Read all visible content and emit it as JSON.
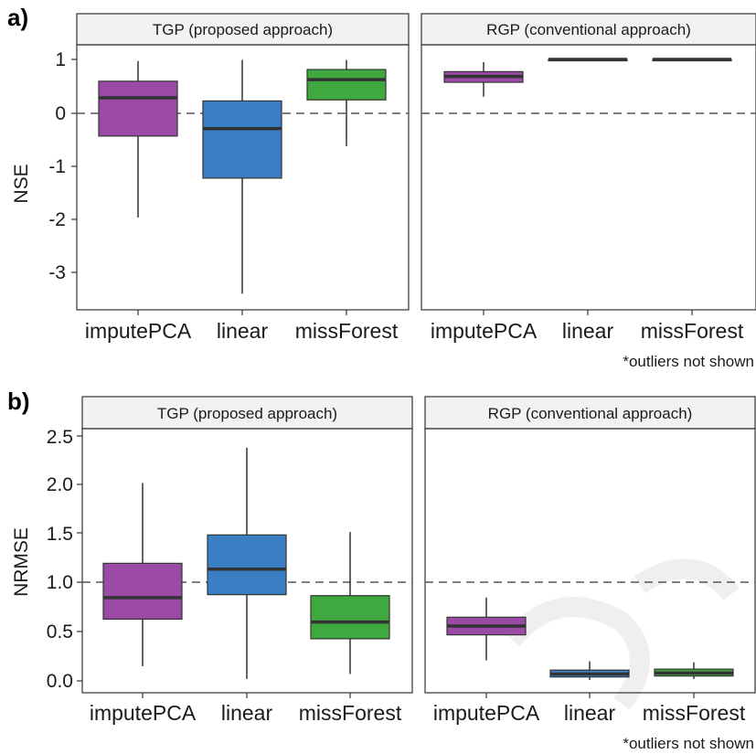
{
  "colors": {
    "imputePCA": "#9b4aa6",
    "linear": "#3a7fc4",
    "missForest": "#3fa83f",
    "strip_bg": "#f2f2f2",
    "median": "#333333",
    "ref_line": "#555555",
    "watermark": "#eeeeee"
  },
  "chart_data": [
    {
      "type": "box",
      "panel_label": "a)",
      "ylabel": "NSE",
      "yticks": [
        "1",
        "0",
        "-1",
        "-2",
        "-3"
      ],
      "ylim": [
        -3.75,
        1.2
      ],
      "reference_line": 0,
      "categories": [
        "imputePCA",
        "linear",
        "missForest"
      ],
      "note": "*outliers not shown",
      "facets": [
        {
          "title": "TGP (proposed approach)",
          "boxes": [
            {
              "category": "imputePCA",
              "whisker_low": -1.97,
              "q1": -0.44,
              "median": 0.28,
              "q3": 0.59,
              "whisker_high": 0.97
            },
            {
              "category": "linear",
              "whisker_low": -3.4,
              "q1": -1.23,
              "median": -0.3,
              "q3": 0.22,
              "whisker_high": 0.99
            },
            {
              "category": "missForest",
              "whisker_low": -0.63,
              "q1": 0.24,
              "median": 0.62,
              "q3": 0.81,
              "whisker_high": 0.99
            }
          ]
        },
        {
          "title": "RGP (conventional approach)",
          "boxes": [
            {
              "category": "imputePCA",
              "whisker_low": 0.3,
              "q1": 0.57,
              "median": 0.68,
              "q3": 0.77,
              "whisker_high": 0.95
            },
            {
              "category": "linear",
              "whisker_low": 0.99,
              "q1": 0.99,
              "median": 1.0,
              "q3": 1.0,
              "whisker_high": 1.0
            },
            {
              "category": "missForest",
              "whisker_low": 0.99,
              "q1": 0.99,
              "median": 1.0,
              "q3": 1.0,
              "whisker_high": 1.0
            }
          ]
        }
      ]
    },
    {
      "type": "box",
      "panel_label": "b)",
      "ylabel": "NRMSE",
      "yticks": [
        "2.5",
        "2.0",
        "1.5",
        "1.0",
        "0.5",
        "0.0"
      ],
      "ylim": [
        -0.06,
        2.45
      ],
      "reference_line": 1.0,
      "categories": [
        "imputePCA",
        "linear",
        "missForest"
      ],
      "note": "*outliers not shown",
      "facets": [
        {
          "title": "TGP (proposed approach)",
          "boxes": [
            {
              "category": "imputePCA",
              "whisker_low": 0.15,
              "q1": 0.63,
              "median": 0.85,
              "q3": 1.2,
              "whisker_high": 2.02
            },
            {
              "category": "linear",
              "whisker_low": 0.02,
              "q1": 0.88,
              "median": 1.14,
              "q3": 1.49,
              "whisker_high": 2.38
            },
            {
              "category": "missForest",
              "whisker_low": 0.07,
              "q1": 0.43,
              "median": 0.6,
              "q3": 0.87,
              "whisker_high": 1.52
            }
          ]
        },
        {
          "title": "RGP (conventional approach)",
          "boxes": [
            {
              "category": "imputePCA",
              "whisker_low": 0.21,
              "q1": 0.47,
              "median": 0.56,
              "q3": 0.65,
              "whisker_high": 0.85
            },
            {
              "category": "linear",
              "whisker_low": 0.01,
              "q1": 0.04,
              "median": 0.07,
              "q3": 0.11,
              "whisker_high": 0.2
            },
            {
              "category": "missForest",
              "whisker_low": 0.02,
              "q1": 0.05,
              "median": 0.08,
              "q3": 0.12,
              "whisker_high": 0.19
            }
          ]
        }
      ]
    }
  ]
}
